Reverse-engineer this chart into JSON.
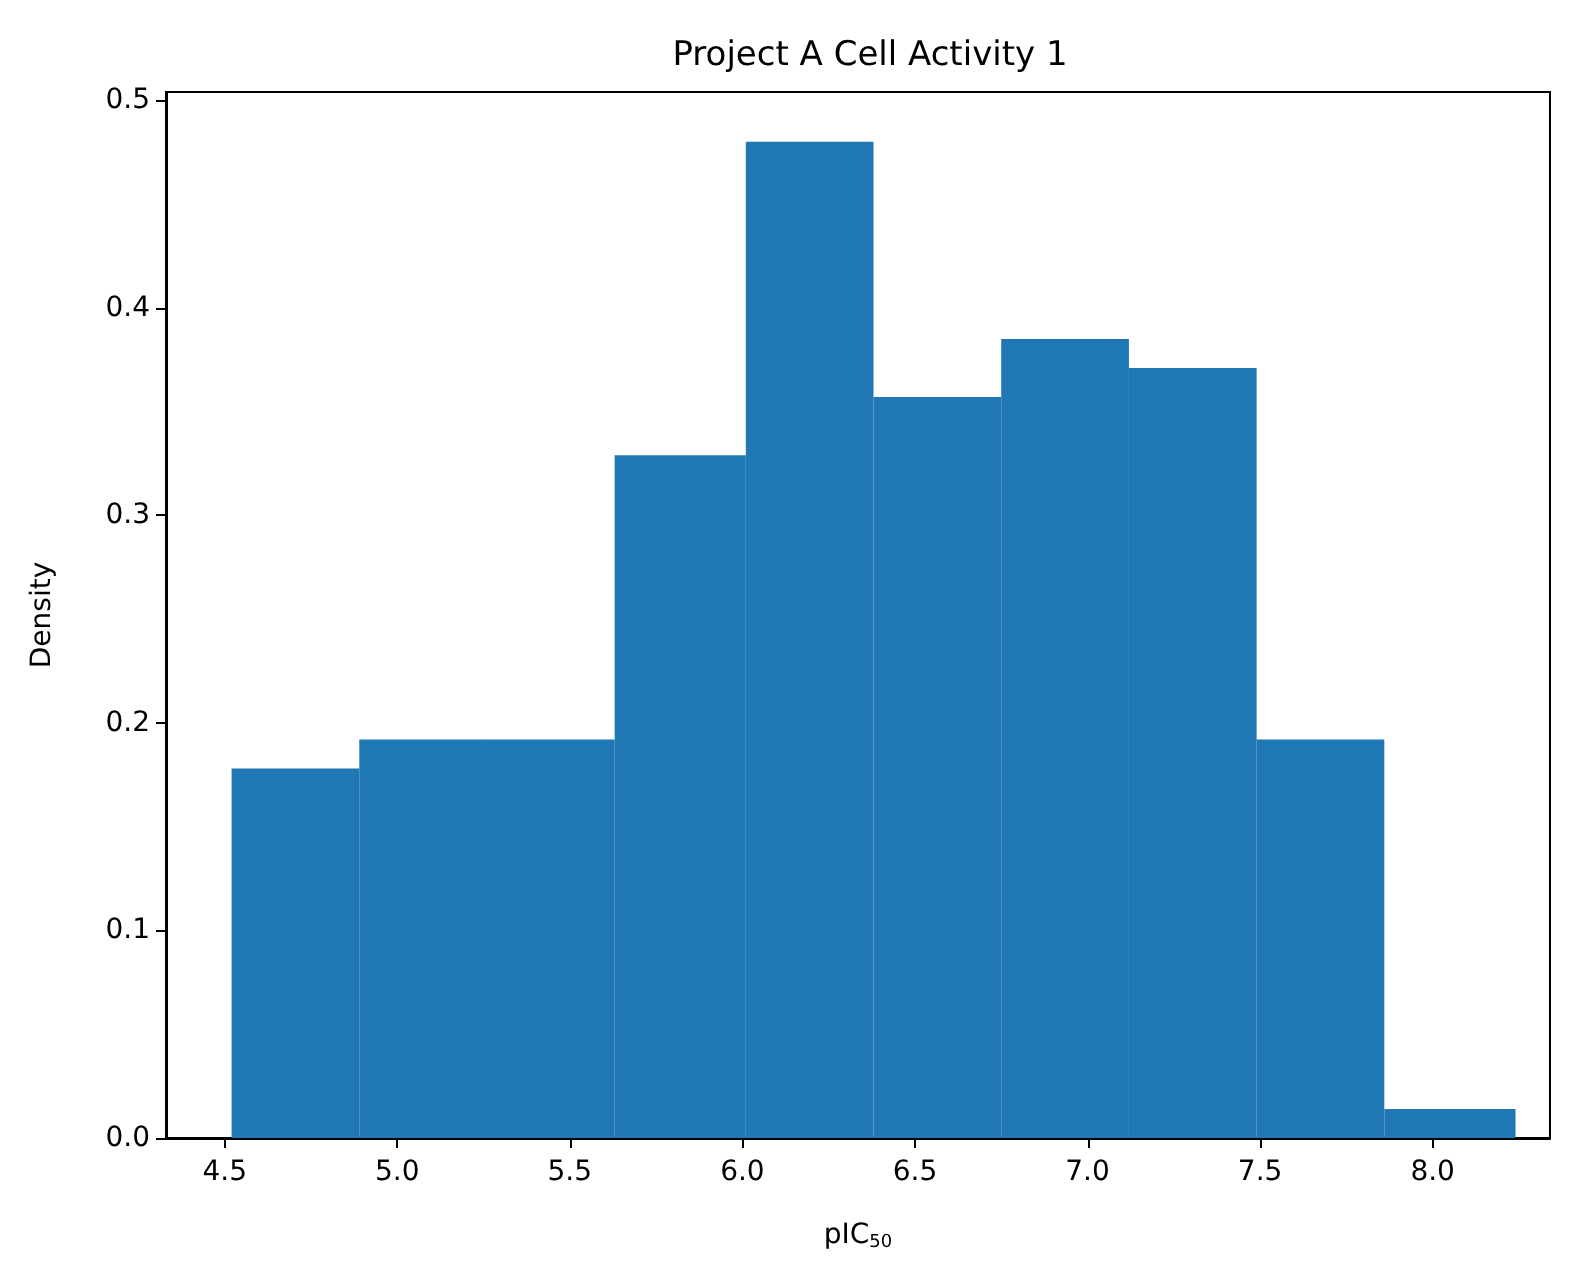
{
  "chart_data": {
    "type": "histogram",
    "title": "Project A Cell Activity 1",
    "xlabel": "pIC$_{50}$",
    "ylabel": "Density",
    "bins": [
      4.52,
      4.89,
      5.26,
      5.63,
      6.01,
      6.38,
      6.75,
      7.12,
      7.49,
      7.86,
      8.24
    ],
    "values": [
      0.178,
      0.192,
      0.192,
      0.329,
      0.48,
      0.357,
      0.385,
      0.371,
      0.192,
      0.014
    ],
    "color": "#1f77b4",
    "xlim": [
      4.33,
      8.34
    ],
    "xticks": [
      4.5,
      {
        "value": 5,
        "label": "5.0"
      },
      5.5,
      {
        "value": 6,
        "label": "6.0"
      },
      6.5,
      {
        "value": 7,
        "label": "7.0"
      },
      7.5,
      {
        "value": 8,
        "label": "8.0"
      }
    ],
    "ylim": [
      0,
      0.504
    ],
    "yticks": [
      {
        "value": 0,
        "label": "0.0"
      },
      0.1,
      0.2,
      0.3,
      0.4,
      0.5
    ],
    "grid": false
  }
}
